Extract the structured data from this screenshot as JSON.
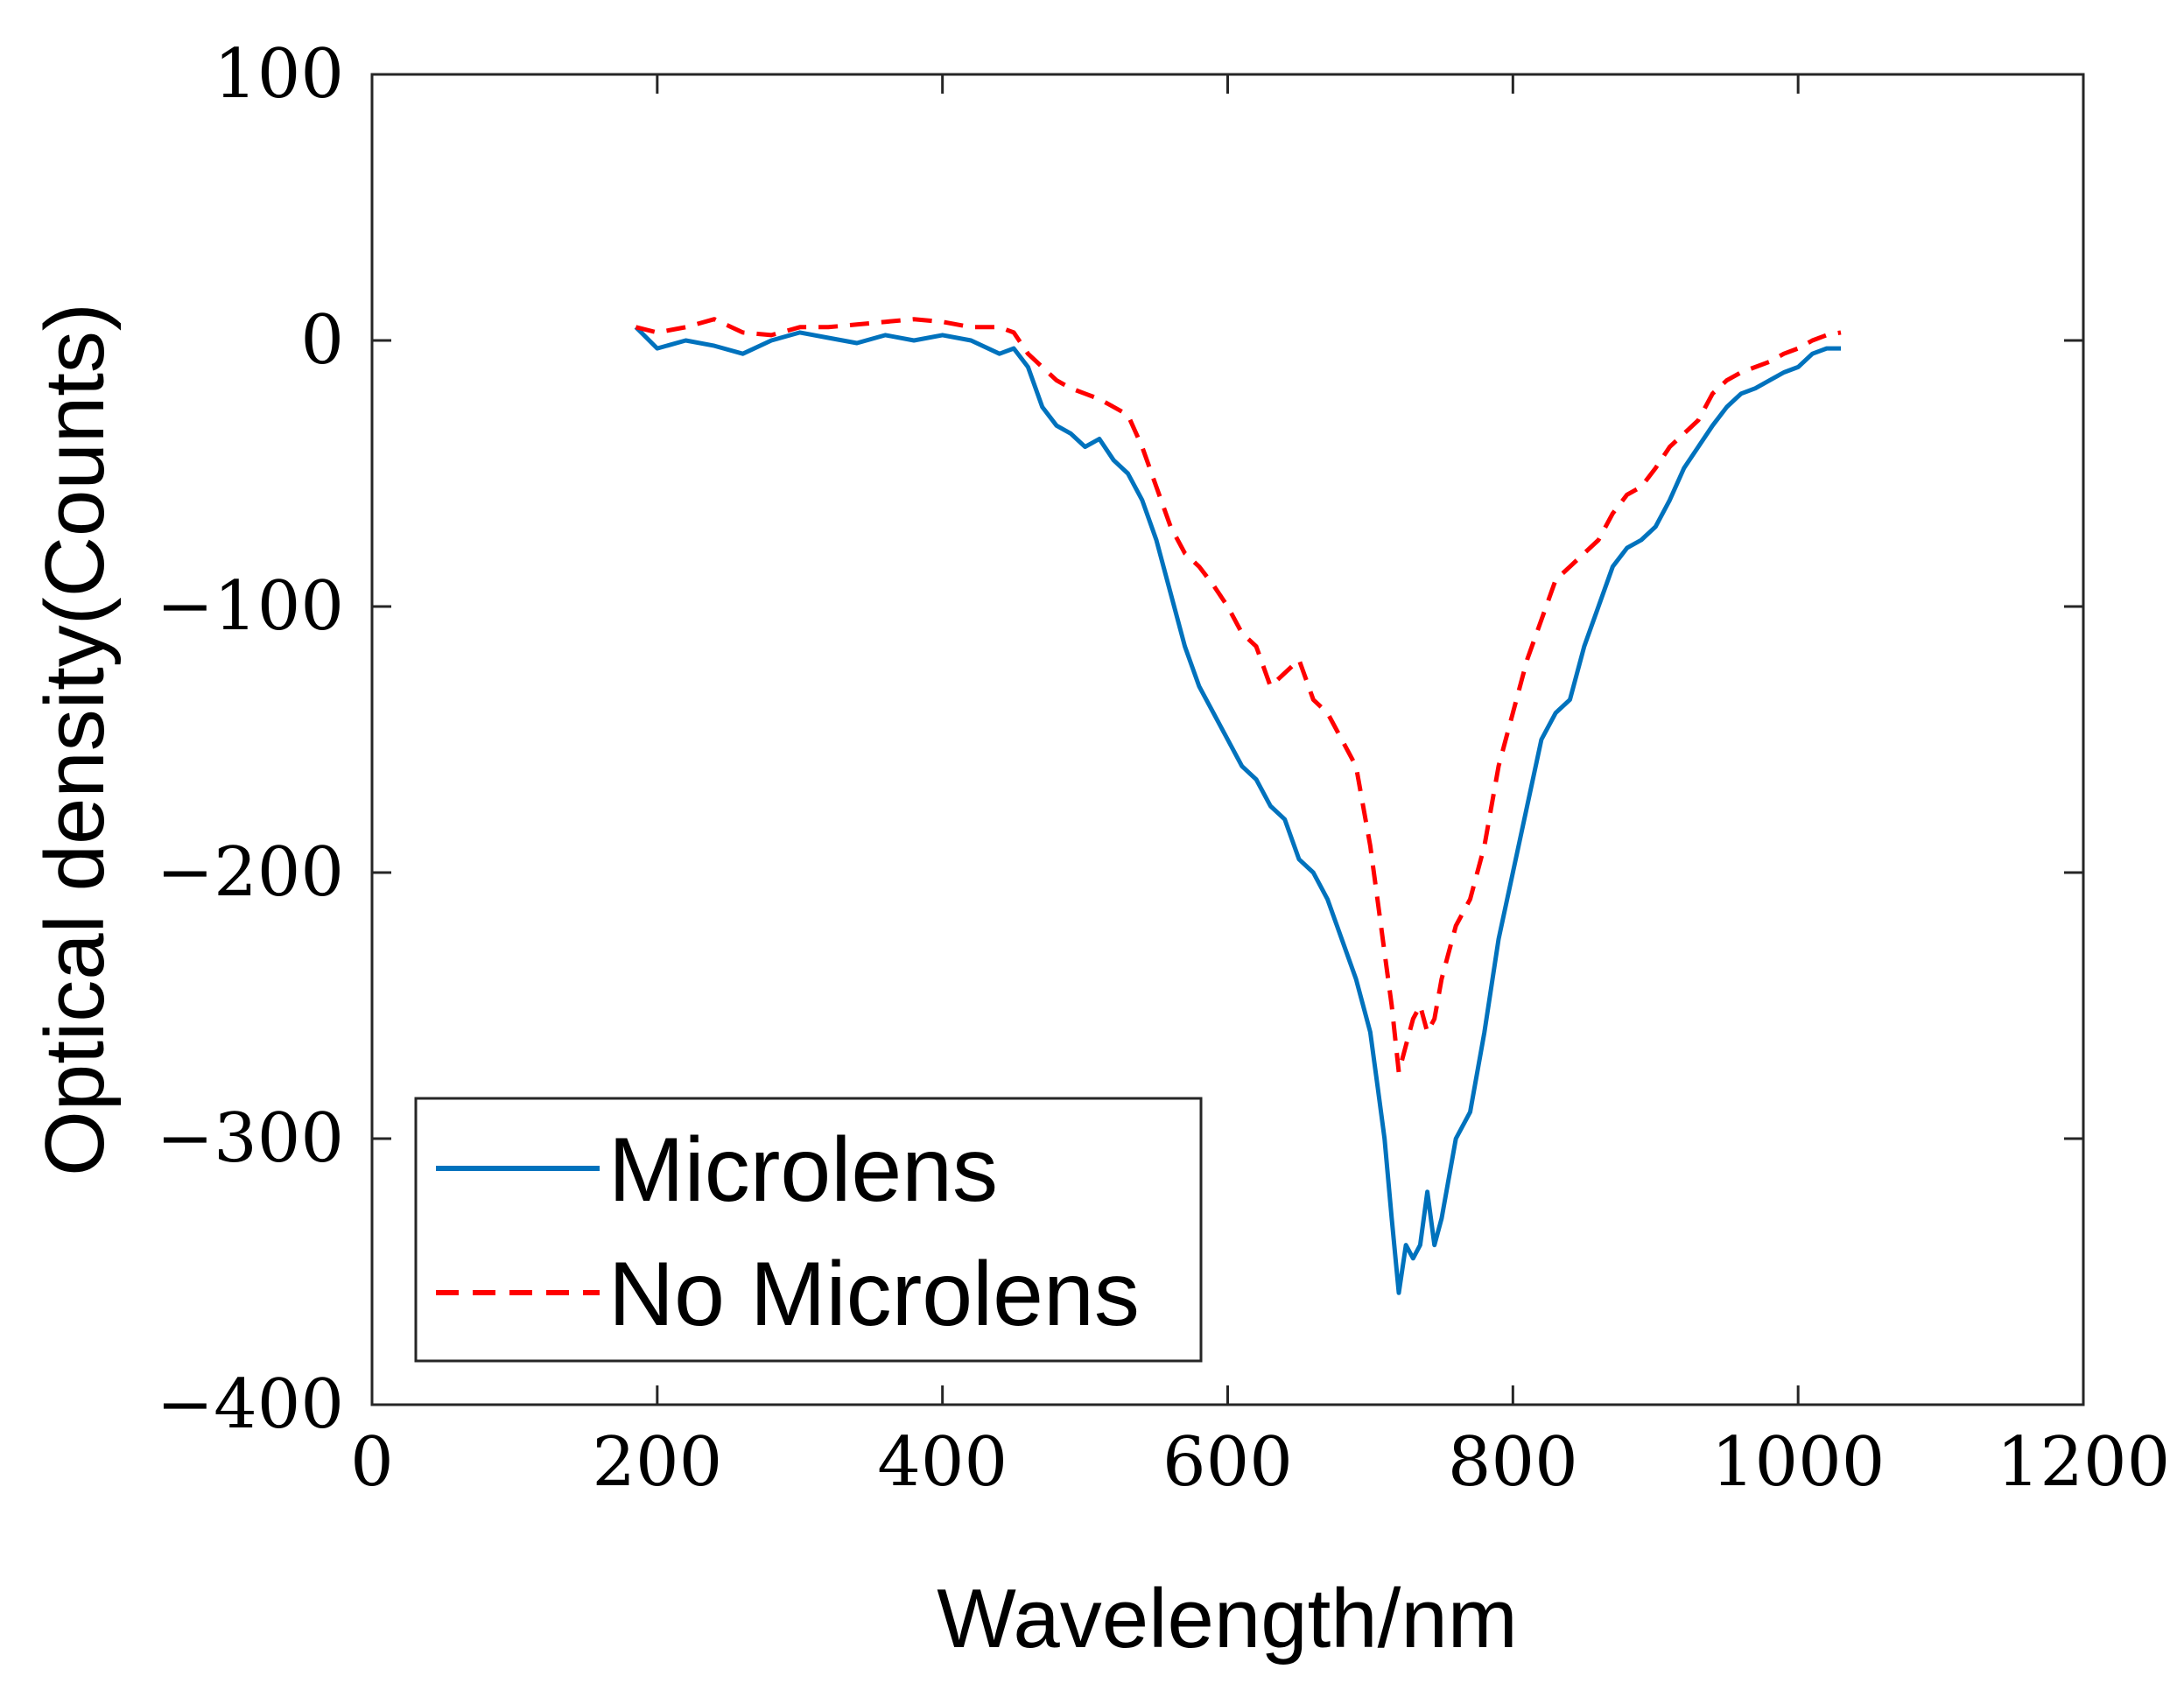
{
  "chart_data": {
    "type": "line",
    "title": "",
    "xlabel": "Wavelength/nm",
    "ylabel": "Optical density(Counts)",
    "xlim": [
      0,
      1200
    ],
    "ylim": [
      -400,
      100
    ],
    "xticks": [
      0,
      200,
      400,
      600,
      800,
      1000,
      1200
    ],
    "xtick_labels": [
      "0",
      "200",
      "400",
      "600",
      "800",
      "1000",
      "1200"
    ],
    "yticks": [
      100,
      0,
      -100,
      -200,
      -300,
      -400
    ],
    "ytick_labels": [
      "100",
      "0",
      "−100",
      "−200",
      "−300",
      "−400"
    ],
    "grid": false,
    "legend_position": "bottom-left",
    "series": [
      {
        "name": "Microlens",
        "color": "#0072BD",
        "style": "solid",
        "x": [
          185,
          200,
          220,
          240,
          260,
          280,
          300,
          320,
          340,
          360,
          380,
          400,
          420,
          440,
          450,
          460,
          470,
          480,
          490,
          500,
          510,
          520,
          530,
          540,
          550,
          560,
          570,
          580,
          590,
          600,
          610,
          620,
          630,
          640,
          650,
          660,
          670,
          680,
          690,
          700,
          705,
          710,
          715,
          720,
          725,
          730,
          735,
          740,
          745,
          750,
          760,
          770,
          780,
          790,
          800,
          810,
          820,
          830,
          840,
          850,
          860,
          870,
          880,
          890,
          900,
          910,
          920,
          930,
          940,
          950,
          960,
          970,
          980,
          990,
          1000,
          1010,
          1020,
          1030
        ],
        "y": [
          5,
          -3,
          0,
          -2,
          -5,
          0,
          3,
          1,
          -1,
          2,
          0,
          2,
          0,
          -5,
          -3,
          -10,
          -25,
          -32,
          -35,
          -40,
          -37,
          -45,
          -50,
          -60,
          -75,
          -95,
          -115,
          -130,
          -140,
          -150,
          -160,
          -165,
          -175,
          -180,
          -195,
          -200,
          -210,
          -225,
          -240,
          -260,
          -280,
          -300,
          -330,
          -358,
          -340,
          -345,
          -340,
          -320,
          -340,
          -330,
          -300,
          -290,
          -260,
          -225,
          -200,
          -175,
          -150,
          -140,
          -135,
          -115,
          -100,
          -85,
          -78,
          -75,
          -70,
          -60,
          -48,
          -40,
          -32,
          -25,
          -20,
          -18,
          -15,
          -12,
          -10,
          -5,
          -3,
          -3
        ]
      },
      {
        "name": "No Microlens",
        "color": "#FF0000",
        "style": "dashed",
        "x": [
          185,
          200,
          220,
          240,
          260,
          280,
          300,
          320,
          340,
          360,
          380,
          400,
          420,
          440,
          450,
          460,
          470,
          480,
          490,
          500,
          510,
          520,
          530,
          540,
          550,
          560,
          570,
          580,
          590,
          600,
          610,
          620,
          630,
          640,
          650,
          660,
          670,
          680,
          690,
          700,
          705,
          710,
          715,
          720,
          725,
          730,
          735,
          740,
          745,
          750,
          760,
          770,
          780,
          790,
          800,
          810,
          820,
          830,
          840,
          850,
          860,
          870,
          880,
          890,
          900,
          910,
          920,
          930,
          940,
          950,
          960,
          970,
          980,
          990,
          1000,
          1010,
          1020,
          1030
        ],
        "y": [
          5,
          3,
          5,
          8,
          3,
          2,
          5,
          5,
          6,
          7,
          8,
          7,
          5,
          5,
          3,
          -5,
          -10,
          -15,
          -18,
          -20,
          -22,
          -25,
          -28,
          -40,
          -55,
          -70,
          -80,
          -85,
          -92,
          -100,
          -110,
          -115,
          -130,
          -125,
          -120,
          -135,
          -140,
          -150,
          -160,
          -190,
          -210,
          -230,
          -250,
          -275,
          -265,
          -255,
          -250,
          -260,
          -255,
          -240,
          -220,
          -210,
          -190,
          -160,
          -140,
          -120,
          -105,
          -90,
          -85,
          -80,
          -75,
          -65,
          -58,
          -55,
          -48,
          -40,
          -35,
          -30,
          -20,
          -15,
          -12,
          -10,
          -8,
          -5,
          -3,
          0,
          2,
          3
        ]
      }
    ]
  }
}
